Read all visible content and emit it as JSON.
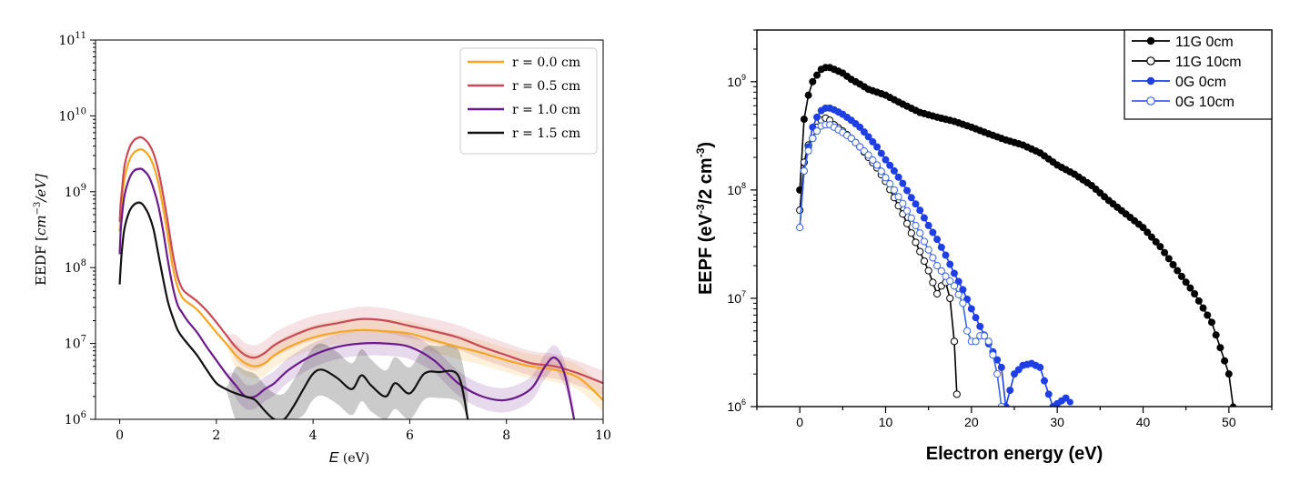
{
  "chart_data": [
    {
      "type": "line",
      "xlabel_var": "E",
      "xlabel_unit": " (eV)",
      "ylabel": "EEDF [cm^{-3}/eV]",
      "ylabel_plain": "EEDF [",
      "ylabel_cm": "cm",
      "ylabel_exp": "−3",
      "ylabel_rest": "/eV]",
      "xlim": [
        -0.5,
        10
      ],
      "ylim": [
        1000000,
        100000000000
      ],
      "yscale": "log",
      "xticks": [
        0,
        2,
        4,
        6,
        8,
        10
      ],
      "xtick_labels": [
        "0",
        "2",
        "4",
        "6",
        "8",
        "10"
      ],
      "ytick_exps": [
        "6",
        "7",
        "8",
        "9",
        "10",
        "11"
      ],
      "legend_position": "top-right",
      "series": [
        {
          "name": "r = 0.0 cm",
          "color": "#f5a623",
          "x": [
            0.0,
            0.02,
            0.05,
            0.1,
            0.2,
            0.3,
            0.4,
            0.45,
            0.5,
            0.6,
            0.7,
            0.8,
            0.9,
            1.0,
            1.1,
            1.2,
            1.3,
            1.4,
            1.6,
            1.8,
            2.0,
            2.2,
            2.4,
            2.6,
            2.8,
            3.0,
            3.2,
            3.5,
            4.0,
            4.5,
            5.0,
            5.5,
            6.0,
            6.5,
            7.0,
            7.5,
            8.0,
            8.5,
            9.0,
            9.5,
            10.0
          ],
          "values": [
            300000000.0,
            500000000.0,
            800000000.0,
            1500000000.0,
            2600000000.0,
            3300000000.0,
            3600000000.0,
            3600000000.0,
            3500000000.0,
            3000000000.0,
            2200000000.0,
            1300000000.0,
            600000000.0,
            250000000.0,
            100000000.0,
            55000000.0,
            40000000.0,
            35000000.0,
            28000000.0,
            20000000.0,
            14000000.0,
            10000000.0,
            7000000.0,
            5500000.0,
            5000000.0,
            5500000.0,
            7000000.0,
            9000000.0,
            12000000.0,
            14000000.0,
            15000000.0,
            14500000.0,
            13500000.0,
            11000000.0,
            9000000.0,
            7500000.0,
            6000000.0,
            5000000.0,
            4500000.0,
            3500000.0,
            1800000.0
          ]
        },
        {
          "name": "r = 0.5 cm",
          "color": "#c94a57",
          "x": [
            0.0,
            0.02,
            0.05,
            0.1,
            0.2,
            0.3,
            0.4,
            0.45,
            0.5,
            0.6,
            0.7,
            0.8,
            0.9,
            1.0,
            1.1,
            1.2,
            1.3,
            1.4,
            1.6,
            1.8,
            2.0,
            2.2,
            2.4,
            2.6,
            2.8,
            3.0,
            3.2,
            3.5,
            4.0,
            4.5,
            5.0,
            5.5,
            6.0,
            6.5,
            7.0,
            7.5,
            8.0,
            8.5,
            9.0,
            9.5,
            10.0
          ],
          "values": [
            400000000.0,
            700000000.0,
            1100000000.0,
            2200000000.0,
            3800000000.0,
            4800000000.0,
            5200000000.0,
            5200000000.0,
            5000000000.0,
            4300000000.0,
            3200000000.0,
            1900000000.0,
            900000000.0,
            380000000.0,
            150000000.0,
            75000000.0,
            52000000.0,
            45000000.0,
            36000000.0,
            27000000.0,
            19000000.0,
            13000000.0,
            9000000.0,
            7000000.0,
            6500000.0,
            7500000.0,
            9500000.0,
            12000000.0,
            16000000.0,
            18500000.0,
            21000000.0,
            20000000.0,
            17000000.0,
            14500000.0,
            12000000.0,
            9000000.0,
            7000000.0,
            5500000.0,
            5000000.0,
            4000000.0,
            3000000.0
          ]
        },
        {
          "name": "r = 1.0 cm",
          "color": "#6a1a8a",
          "x": [
            0.0,
            0.02,
            0.05,
            0.1,
            0.2,
            0.3,
            0.4,
            0.45,
            0.5,
            0.6,
            0.7,
            0.8,
            0.9,
            1.0,
            1.1,
            1.2,
            1.3,
            1.4,
            1.6,
            1.8,
            2.0,
            2.2,
            2.4,
            2.6,
            2.8,
            3.0,
            3.2,
            3.5,
            4.0,
            4.5,
            5.0,
            5.5,
            6.0,
            6.5,
            7.0,
            7.5,
            8.0,
            8.5,
            8.8,
            9.0,
            9.2,
            9.4
          ],
          "values": [
            150000000.0,
            300000000.0,
            500000000.0,
            900000000.0,
            1500000000.0,
            1900000000.0,
            2000000000.0,
            2000000000.0,
            1900000000.0,
            1600000000.0,
            1100000000.0,
            650000000.0,
            300000000.0,
            120000000.0,
            55000000.0,
            32000000.0,
            25000000.0,
            20000000.0,
            14000000.0,
            9000000.0,
            6000000.0,
            4000000.0,
            2800000.0,
            2000000.0,
            2000000.0,
            2500000.0,
            3000000.0,
            4500000.0,
            7000000.0,
            9000000.0,
            10000000.0,
            10000000.0,
            9000000.0,
            6000000.0,
            3000000.0,
            2000000.0,
            1800000.0,
            2500000.0,
            5000000.0,
            6500000.0,
            4000000.0,
            1000000.0
          ]
        },
        {
          "name": "r = 1.5 cm",
          "color": "#111111",
          "x": [
            0.0,
            0.02,
            0.05,
            0.1,
            0.2,
            0.3,
            0.4,
            0.45,
            0.5,
            0.6,
            0.7,
            0.8,
            0.9,
            1.0,
            1.1,
            1.2,
            1.3,
            1.4,
            1.6,
            1.8,
            2.0,
            2.2,
            2.4,
            2.6,
            2.8,
            3.0,
            3.2,
            3.4,
            3.6,
            3.8,
            4.0,
            4.2,
            4.5,
            4.8,
            5.0,
            5.2,
            5.5,
            5.7,
            6.0,
            6.3,
            6.6,
            7.0,
            7.2
          ],
          "values": [
            60000000.0,
            100000000.0,
            180000000.0,
            330000000.0,
            550000000.0,
            680000000.0,
            720000000.0,
            700000000.0,
            650000000.0,
            500000000.0,
            320000000.0,
            150000000.0,
            70000000.0,
            35000000.0,
            22000000.0,
            15000000.0,
            12000000.0,
            10000000.0,
            7000000.0,
            4500000.0,
            3000000.0,
            2500000.0,
            2200000.0,
            2000000.0,
            1800000.0,
            1300000.0,
            1000000.0,
            1000000.0,
            1500000.0,
            2500000.0,
            4000000.0,
            4500000.0,
            3500000.0,
            2500000.0,
            3800000.0,
            2800000.0,
            2000000.0,
            3000000.0,
            2200000.0,
            4000000.0,
            4200000.0,
            3800000.0,
            1000000.0
          ]
        }
      ]
    },
    {
      "type": "line",
      "xlabel": "Electron energy (eV)",
      "ylabel_prefix": "EEPF (eV",
      "ylabel_exp1": "-3",
      "ylabel_mid": "/2 cm",
      "ylabel_exp2": "-3",
      "ylabel_suffix": ")",
      "xlim": [
        -5,
        55
      ],
      "ylim": [
        1000000,
        3000000000
      ],
      "yscale": "log",
      "xticks": [
        0,
        10,
        20,
        30,
        40,
        50
      ],
      "xtick_labels": [
        "0",
        "10",
        "20",
        "30",
        "40",
        "50"
      ],
      "ytick_exps": [
        "6",
        "7",
        "8",
        "9"
      ],
      "legend_position": "top-right",
      "series": [
        {
          "name": "11G 0cm",
          "color": "#000000",
          "marker": "filled-circle",
          "x": [
            0.0,
            0.5,
            1.0,
            1.5,
            2.0,
            2.5,
            3.0,
            3.5,
            4.0,
            5.0,
            6.0,
            7.0,
            8.0,
            9.0,
            10.0,
            12.0,
            14.0,
            16.0,
            18.0,
            20.0,
            22.0,
            24.0,
            26.0,
            28.0,
            30.0,
            32.0,
            34.0,
            36.0,
            38.0,
            40.0,
            42.0,
            44.0,
            46.0,
            48.0,
            49.0,
            50.0,
            50.5
          ],
          "values": [
            100000000.0,
            450000000.0,
            750000000.0,
            1000000000.0,
            1150000000.0,
            1300000000.0,
            1350000000.0,
            1350000000.0,
            1300000000.0,
            1200000000.0,
            1050000000.0,
            950000000.0,
            850000000.0,
            800000000.0,
            750000000.0,
            620000000.0,
            520000000.0,
            470000000.0,
            430000000.0,
            380000000.0,
            330000000.0,
            290000000.0,
            260000000.0,
            220000000.0,
            170000000.0,
            140000000.0,
            110000000.0,
            80000000.0,
            60000000.0,
            45000000.0,
            30000000.0,
            18000000.0,
            11000000.0,
            6000000.0,
            3500000.0,
            2000000.0,
            1000000.0
          ]
        },
        {
          "name": "11G 10cm",
          "color": "#000000",
          "marker": "open-circle",
          "x": [
            0.0,
            0.5,
            1.0,
            1.5,
            2.0,
            2.5,
            3.0,
            3.5,
            4.0,
            5.0,
            6.0,
            7.0,
            8.0,
            9.0,
            10.0,
            11.0,
            12.0,
            13.0,
            14.0,
            15.0,
            15.5,
            16.0,
            16.5,
            17.0,
            17.5,
            18.0,
            18.3
          ],
          "values": [
            65000000.0,
            180000000.0,
            260000000.0,
            300000000.0,
            380000000.0,
            440000000.0,
            460000000.0,
            440000000.0,
            400000000.0,
            350000000.0,
            300000000.0,
            250000000.0,
            200000000.0,
            160000000.0,
            120000000.0,
            85000000.0,
            60000000.0,
            40000000.0,
            27000000.0,
            18000000.0,
            14000000.0,
            11000000.0,
            13000000.0,
            14000000.0,
            10000000.0,
            4000000.0,
            1300000.0
          ]
        },
        {
          "name": "0G 0cm",
          "color": "#1f3fe6",
          "marker": "filled-circle",
          "x": [
            0.0,
            0.5,
            1.0,
            1.5,
            2.0,
            2.5,
            3.0,
            3.5,
            4.0,
            5.0,
            6.0,
            7.0,
            8.0,
            9.0,
            10.0,
            11.0,
            12.0,
            13.0,
            14.0,
            15.0,
            16.0,
            17.0,
            18.0,
            19.0,
            20.0,
            21.0,
            22.0,
            23.0,
            23.5,
            24.0,
            25.0,
            26.0,
            27.0,
            28.0,
            29.0,
            29.5,
            31.0,
            31.5
          ],
          "values": [
            45000000.0,
            150000000.0,
            250000000.0,
            380000000.0,
            470000000.0,
            540000000.0,
            570000000.0,
            570000000.0,
            550000000.0,
            500000000.0,
            440000000.0,
            380000000.0,
            310000000.0,
            250000000.0,
            190000000.0,
            150000000.0,
            115000000.0,
            85000000.0,
            65000000.0,
            47000000.0,
            35000000.0,
            25000000.0,
            17000000.0,
            12000000.0,
            8000000.0,
            5500000.0,
            3800000.0,
            2700000.0,
            2300000.0,
            1000000.0,
            2000000.0,
            2400000.0,
            2500000.0,
            2300000.0,
            1300000.0,
            1000000.0,
            1200000.0,
            1100000.0
          ]
        },
        {
          "name": "0G 10cm",
          "color": "#3a66e8",
          "marker": "open-circle",
          "x": [
            0.0,
            0.5,
            1.0,
            1.5,
            2.0,
            2.5,
            3.0,
            3.5,
            4.0,
            5.0,
            6.0,
            7.0,
            8.0,
            9.0,
            10.0,
            11.0,
            12.0,
            13.0,
            14.0,
            15.0,
            16.0,
            17.0,
            18.0,
            19.0,
            19.5,
            20.0,
            20.5,
            21.0,
            21.5,
            22.0,
            22.5,
            23.0,
            23.5
          ],
          "values": [
            45000000.0,
            150000000.0,
            230000000.0,
            300000000.0,
            350000000.0,
            390000000.0,
            400000000.0,
            400000000.0,
            380000000.0,
            340000000.0,
            300000000.0,
            250000000.0,
            210000000.0,
            170000000.0,
            130000000.0,
            100000000.0,
            75000000.0,
            55000000.0,
            40000000.0,
            28000000.0,
            20000000.0,
            16000000.0,
            13000000.0,
            9000000.0,
            5000000.0,
            4000000.0,
            4000000.0,
            4500000.0,
            4500000.0,
            4000000.0,
            3000000.0,
            2000000.0,
            1000000.0
          ]
        }
      ]
    }
  ]
}
